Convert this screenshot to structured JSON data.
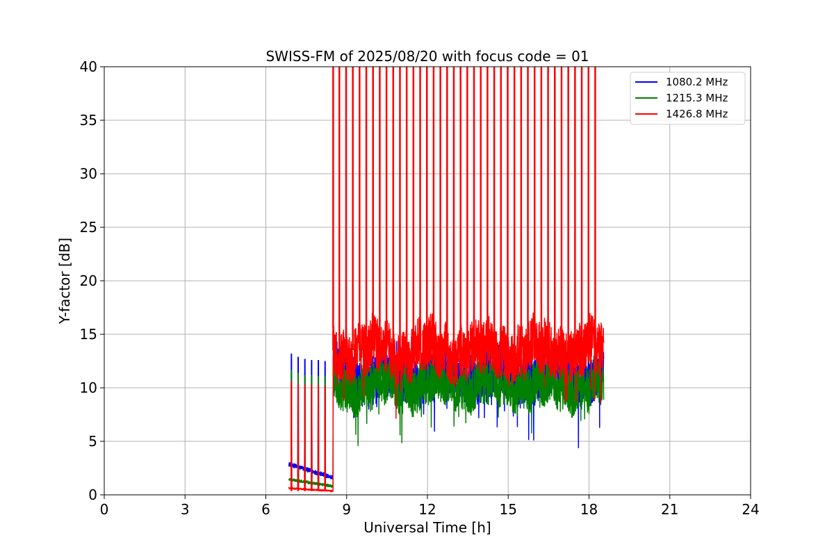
{
  "chart_data": {
    "type": "line",
    "title": "SWISS-FM of 2025/08/20 with focus code = 01",
    "xlabel": "Universal Time [h]",
    "ylabel": "Y-factor [dB]",
    "xlim": [
      0,
      24
    ],
    "ylim": [
      0,
      40
    ],
    "xticks": [
      0,
      3,
      6,
      9,
      12,
      15,
      18,
      21,
      24
    ],
    "xtick_labels": [
      "0",
      "3",
      "6",
      "9",
      "12",
      "15",
      "18",
      "21",
      "24"
    ],
    "yticks": [
      0,
      5,
      10,
      15,
      20,
      25,
      30,
      35,
      40
    ],
    "ytick_labels": [
      "0",
      "5",
      "10",
      "15",
      "20",
      "25",
      "30",
      "35",
      "40"
    ],
    "grid": true,
    "legend_position": "top-right",
    "data_range": {
      "start": 6.85,
      "end": 18.55
    },
    "series": [
      {
        "name": "1080.2 MHz",
        "color": "#0000ff",
        "segments": [
          {
            "x_start": 6.85,
            "x_end": 8.5,
            "level": 1.6,
            "noise": 0.4
          },
          {
            "x_start": 8.5,
            "x_end": 18.55,
            "level": 11.2,
            "noise": 3.0
          }
        ],
        "calibration_peaks": [
          {
            "x": 6.95,
            "y": 13.2
          },
          {
            "x": 7.2,
            "y": 12.9
          },
          {
            "x": 7.45,
            "y": 12.7
          },
          {
            "x": 7.7,
            "y": 12.6
          },
          {
            "x": 7.95,
            "y": 12.6
          },
          {
            "x": 8.2,
            "y": 12.5
          }
        ]
      },
      {
        "name": "1215.3 MHz",
        "color": "#008000",
        "segments": [
          {
            "x_start": 6.85,
            "x_end": 8.5,
            "level": 0.8,
            "noise": 0.25
          },
          {
            "x_start": 8.5,
            "x_end": 18.55,
            "level": 10.2,
            "noise": 2.8
          }
        ],
        "calibration_peaks": [
          {
            "x": 6.95,
            "y": 11.7
          },
          {
            "x": 7.2,
            "y": 11.4
          },
          {
            "x": 7.45,
            "y": 11.2
          },
          {
            "x": 7.7,
            "y": 11.2
          },
          {
            "x": 7.95,
            "y": 11.1
          },
          {
            "x": 8.2,
            "y": 11.1
          }
        ]
      },
      {
        "name": "1426.8 MHz",
        "color": "#ff0000",
        "segments": [
          {
            "x_start": 6.85,
            "x_end": 8.5,
            "level": 0.35,
            "noise": 0.15
          },
          {
            "x_start": 8.5,
            "x_end": 18.55,
            "level": 13.5,
            "noise": 3.3
          }
        ],
        "calibration_peaks": [
          {
            "x": 6.95,
            "y": 10.6
          },
          {
            "x": 7.2,
            "y": 10.4
          },
          {
            "x": 7.45,
            "y": 10.3
          },
          {
            "x": 7.7,
            "y": 10.3
          },
          {
            "x": 7.95,
            "y": 10.3
          },
          {
            "x": 8.2,
            "y": 10.2
          }
        ],
        "saturated_spikes": [
          8.5,
          8.73,
          8.98,
          9.23,
          9.48,
          9.73,
          9.98,
          10.23,
          10.48,
          10.73,
          10.98,
          11.23,
          11.48,
          11.73,
          11.98,
          12.23,
          12.48,
          12.73,
          12.98,
          13.23,
          13.48,
          13.73,
          13.98,
          14.23,
          14.48,
          14.73,
          14.98,
          15.23,
          15.48,
          15.73,
          15.98,
          16.23,
          16.48,
          16.73,
          16.98,
          17.23,
          17.48,
          17.73,
          17.98,
          18.23
        ]
      }
    ]
  }
}
